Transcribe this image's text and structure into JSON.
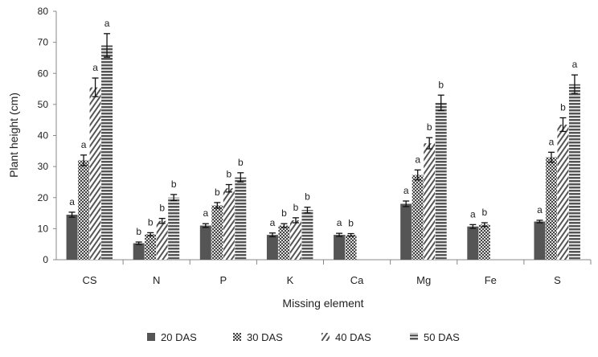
{
  "chart_data": {
    "type": "bar",
    "title": "",
    "xlabel": "Missing element",
    "ylabel": "Plant height (cm)",
    "ylim": [
      0,
      80
    ],
    "yticks": [
      0,
      10,
      20,
      30,
      40,
      50,
      60,
      70,
      80
    ],
    "grid": false,
    "legend_position": "bottom",
    "categories": [
      "CS",
      "N",
      "P",
      "K",
      "Ca",
      "Mg",
      "Fe",
      "S"
    ],
    "series": [
      {
        "name": "20 DAS",
        "pattern": "solid",
        "values": [
          14.5,
          5.3,
          11,
          8,
          8,
          18,
          10.7,
          12.3
        ],
        "errors": [
          0.8,
          0.4,
          0.6,
          0.6,
          0.5,
          0.9,
          0.6,
          0.4
        ],
        "letters": [
          "a",
          "b",
          "a",
          "a",
          "a",
          "a",
          "a",
          "a"
        ]
      },
      {
        "name": "30 DAS",
        "pattern": "crosshatch",
        "values": [
          32,
          8.2,
          17.5,
          11,
          8,
          27.3,
          11.3,
          33
        ],
        "errors": [
          1.7,
          0.5,
          0.9,
          0.6,
          0.4,
          1.6,
          0.6,
          1.6
        ],
        "letters": [
          "a",
          "b",
          "b",
          "b",
          "b",
          "a",
          "b",
          "a"
        ]
      },
      {
        "name": "40 DAS",
        "pattern": "diagonal",
        "values": [
          55.5,
          12.5,
          23,
          12.7,
          null,
          37.5,
          null,
          43.5
        ],
        "errors": [
          3,
          0.8,
          1.2,
          0.8,
          null,
          1.8,
          null,
          2.2
        ],
        "letters": [
          "a",
          "b",
          "b",
          "b",
          "",
          "b",
          "",
          "b"
        ]
      },
      {
        "name": "50 DAS",
        "pattern": "horizontal",
        "values": [
          69,
          20,
          26.5,
          16,
          null,
          50.5,
          null,
          56.5
        ],
        "errors": [
          3.8,
          1,
          1.5,
          0.9,
          null,
          2.5,
          null,
          3
        ],
        "letters": [
          "a",
          "b",
          "b",
          "b",
          "",
          "b",
          "",
          "a"
        ]
      }
    ]
  }
}
